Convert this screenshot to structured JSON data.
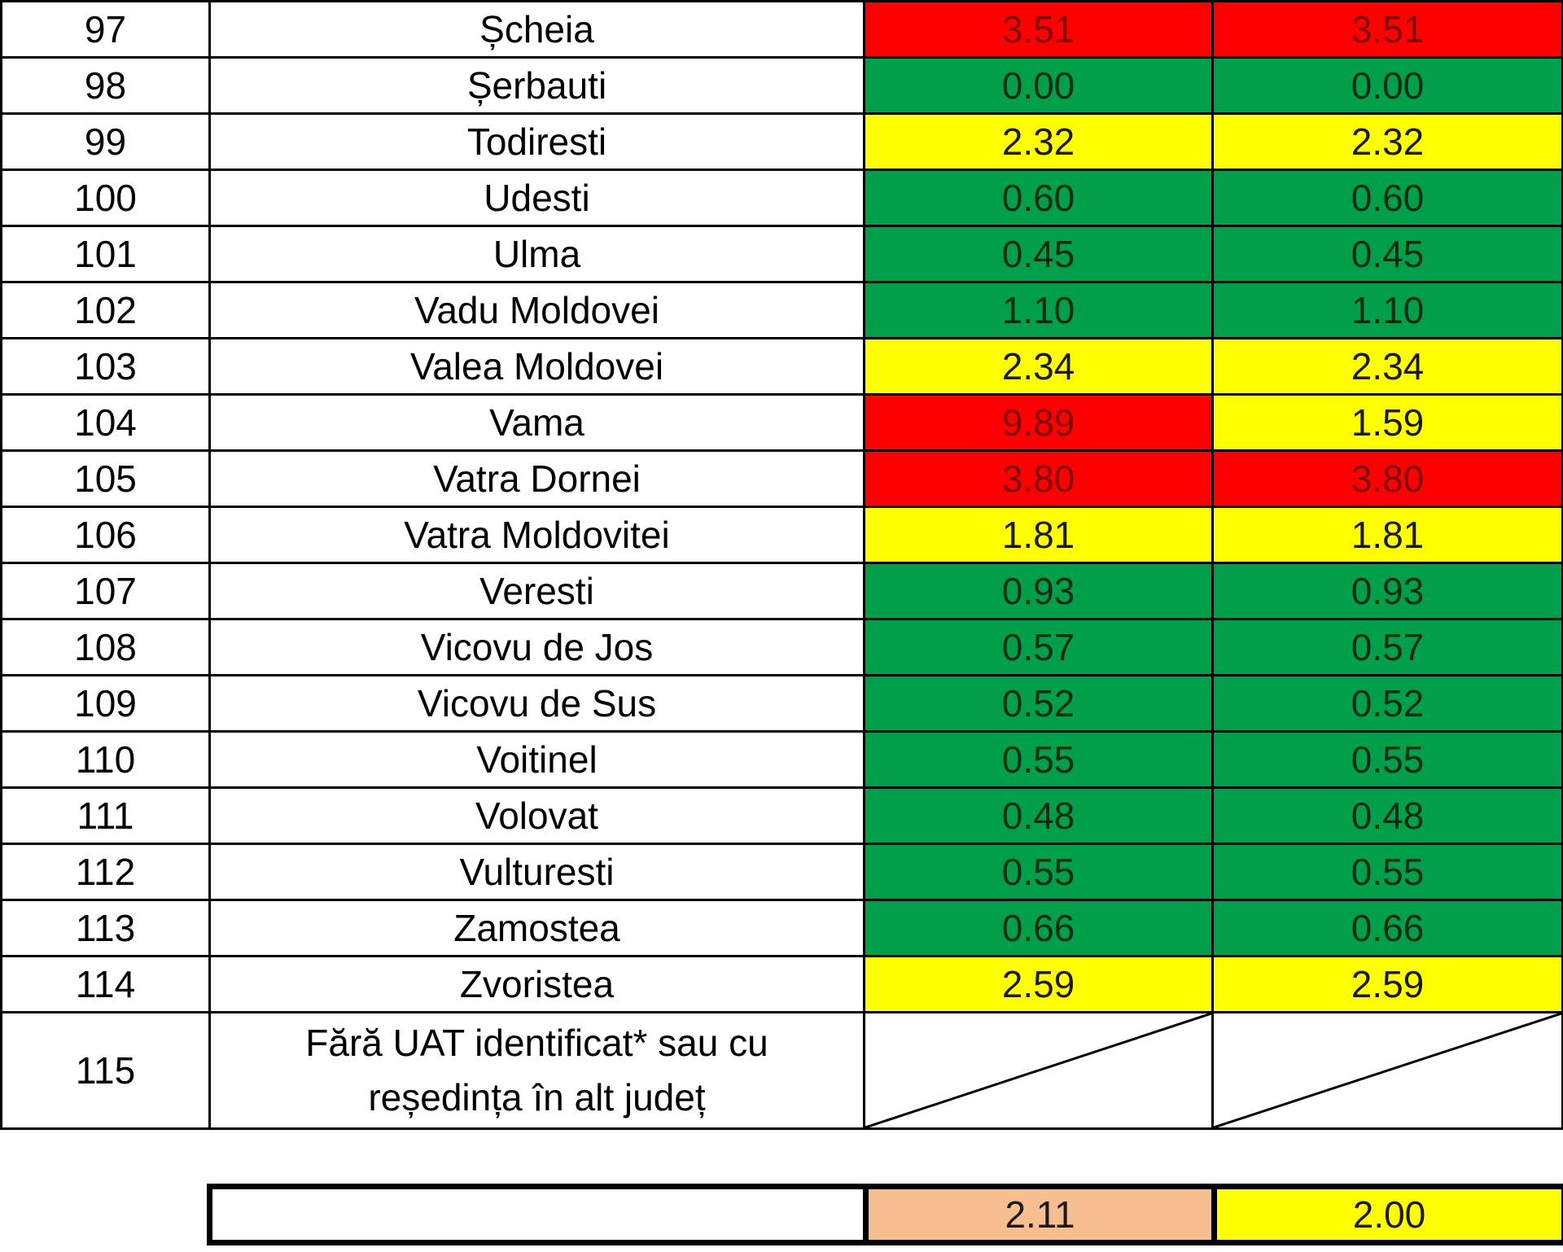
{
  "rows": [
    {
      "no": "97",
      "name": "Șcheia",
      "v1": "3.51",
      "c1": "red",
      "v2": "3.51",
      "c2": "red"
    },
    {
      "no": "98",
      "name": "Șerbauti",
      "v1": "0.00",
      "c1": "green",
      "v2": "0.00",
      "c2": "green"
    },
    {
      "no": "99",
      "name": "Todiresti",
      "v1": "2.32",
      "c1": "yellow",
      "v2": "2.32",
      "c2": "yellow"
    },
    {
      "no": "100",
      "name": "Udesti",
      "v1": "0.60",
      "c1": "green",
      "v2": "0.60",
      "c2": "green"
    },
    {
      "no": "101",
      "name": "Ulma",
      "v1": "0.45",
      "c1": "green",
      "v2": "0.45",
      "c2": "green"
    },
    {
      "no": "102",
      "name": "Vadu Moldovei",
      "v1": "1.10",
      "c1": "green",
      "v2": "1.10",
      "c2": "green"
    },
    {
      "no": "103",
      "name": "Valea Moldovei",
      "v1": "2.34",
      "c1": "yellow",
      "v2": "2.34",
      "c2": "yellow"
    },
    {
      "no": "104",
      "name": "Vama",
      "v1": "9.89",
      "c1": "red",
      "v2": "1.59",
      "c2": "yellow"
    },
    {
      "no": "105",
      "name": "Vatra Dornei",
      "v1": "3.80",
      "c1": "red",
      "v2": "3.80",
      "c2": "red"
    },
    {
      "no": "106",
      "name": "Vatra Moldovitei",
      "v1": "1.81",
      "c1": "yellow",
      "v2": "1.81",
      "c2": "yellow"
    },
    {
      "no": "107",
      "name": "Veresti",
      "v1": "0.93",
      "c1": "green",
      "v2": "0.93",
      "c2": "green"
    },
    {
      "no": "108",
      "name": "Vicovu de Jos",
      "v1": "0.57",
      "c1": "green",
      "v2": "0.57",
      "c2": "green"
    },
    {
      "no": "109",
      "name": "Vicovu de Sus",
      "v1": "0.52",
      "c1": "green",
      "v2": "0.52",
      "c2": "green"
    },
    {
      "no": "110",
      "name": "Voitinel",
      "v1": "0.55",
      "c1": "green",
      "v2": "0.55",
      "c2": "green"
    },
    {
      "no": "111",
      "name": "Volovat",
      "v1": "0.48",
      "c1": "green",
      "v2": "0.48",
      "c2": "green"
    },
    {
      "no": "112",
      "name": "Vulturesti",
      "v1": "0.55",
      "c1": "green",
      "v2": "0.55",
      "c2": "green"
    },
    {
      "no": "113",
      "name": "Zamostea",
      "v1": "0.66",
      "c1": "green",
      "v2": "0.66",
      "c2": "green"
    },
    {
      "no": "114",
      "name": "Zvoristea",
      "v1": "2.59",
      "c1": "yellow",
      "v2": "2.59",
      "c2": "yellow"
    }
  ],
  "last_row": {
    "no": "115",
    "name": "Fără UAT identificat* sau cu reședința în alt județ"
  },
  "totals": {
    "v1": "2.11",
    "c1": "peach",
    "v2": "2.00",
    "c2": "yellow"
  },
  "colors": {
    "red": "#ff0000",
    "green": "#00a04a",
    "yellow": "#ffff00",
    "peach": "#f7be8f"
  }
}
